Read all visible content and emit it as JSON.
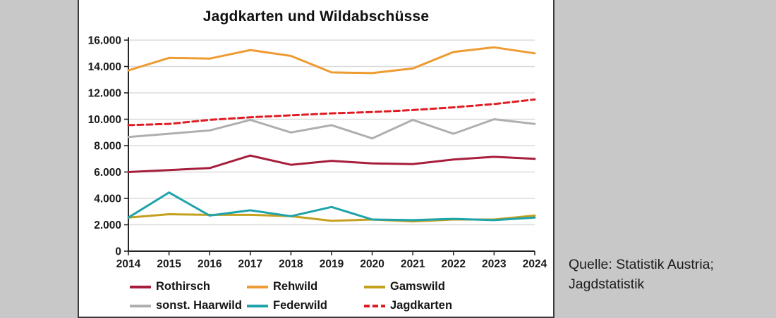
{
  "caption": {
    "line1": "Quelle: Statistik Austria;",
    "line2": "Jagdstatistik"
  },
  "colors": {
    "background": "#c8c8c8",
    "panel": "#ffffff",
    "panel_border": "#3a3a3a",
    "gridline": "#dbdbdb",
    "axis": "#262626",
    "tick_text": "#1a1a1a"
  },
  "chart_data": {
    "type": "line",
    "title": "Jagdkarten und Wildabschüsse",
    "x": [
      2014,
      2015,
      2016,
      2017,
      2018,
      2019,
      2020,
      2021,
      2022,
      2023,
      2024
    ],
    "xlabel": "",
    "ylabel": "",
    "ylim": [
      0,
      16000
    ],
    "ytick_step": 2000,
    "ytick_labels": [
      "0",
      "2.000",
      "4.000",
      "6.000",
      "8.000",
      "10.000",
      "12.000",
      "14.000",
      "16.000"
    ],
    "grid": true,
    "legend_position": "bottom",
    "series": [
      {
        "name": "Rothirsch",
        "color": "#A61E3C",
        "style": "solid",
        "values": [
          6000,
          6150,
          6300,
          7250,
          6550,
          6850,
          6650,
          6600,
          6950,
          7150,
          7000
        ]
      },
      {
        "name": "Rehwild",
        "color": "#EE9B31",
        "style": "solid",
        "values": [
          13700,
          14650,
          14600,
          15250,
          14800,
          13550,
          13500,
          13850,
          15100,
          15450,
          15000
        ]
      },
      {
        "name": "Gamswild",
        "color": "#C4A01F",
        "style": "solid",
        "values": [
          2550,
          2800,
          2750,
          2750,
          2650,
          2300,
          2400,
          2250,
          2400,
          2400,
          2700
        ]
      },
      {
        "name": "sonst. Haarwild",
        "color": "#AFAFAF",
        "style": "solid",
        "values": [
          8650,
          8900,
          9150,
          9950,
          9000,
          9550,
          8550,
          9950,
          8900,
          10000,
          9650
        ]
      },
      {
        "name": "Federwild",
        "color": "#1FA3AB",
        "style": "solid",
        "values": [
          2550,
          4450,
          2700,
          3100,
          2650,
          3350,
          2400,
          2350,
          2450,
          2350,
          2550
        ]
      },
      {
        "name": "Jagdkarten",
        "color": "#E01B24",
        "style": "dashed",
        "values": [
          9550,
          9650,
          9950,
          10150,
          10300,
          10450,
          10550,
          10700,
          10900,
          11150,
          11500
        ]
      }
    ]
  }
}
